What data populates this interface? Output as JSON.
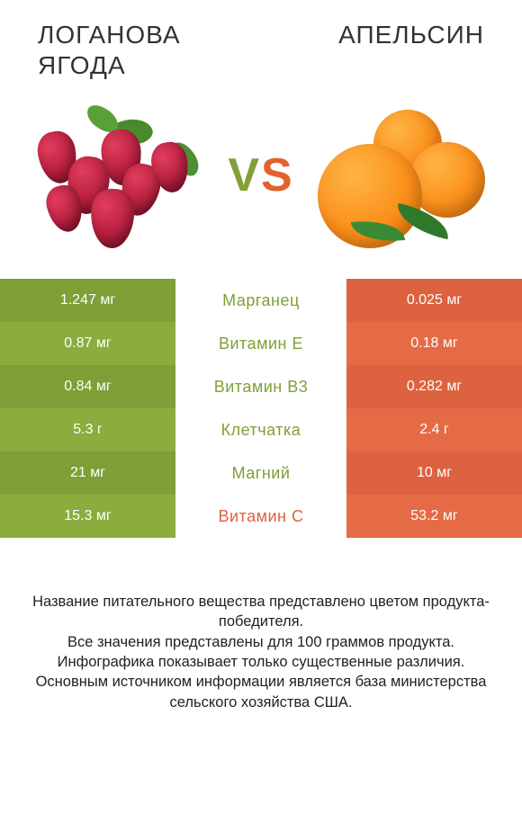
{
  "header": {
    "left_title": "ЛОГАНОВА\nЯГОДА",
    "right_title": "АПЕЛЬСИН",
    "vs_v": "V",
    "vs_s": "S"
  },
  "colors": {
    "left_product": "#8aad3d",
    "right_product": "#e46b45",
    "left_shades": [
      "#7f9f37",
      "#8aad3d"
    ],
    "right_shades": [
      "#dd6240",
      "#e46b45"
    ],
    "mid_background": "#ffffff",
    "nutrient_text_left_winner": "#7f9f37",
    "nutrient_text_right_winner": "#dd6240"
  },
  "table": {
    "rows": [
      {
        "nutrient": "Марганец",
        "left": "1.247 мг",
        "right": "0.025 мг",
        "winner": "left"
      },
      {
        "nutrient": "Витамин E",
        "left": "0.87 мг",
        "right": "0.18 мг",
        "winner": "left"
      },
      {
        "nutrient": "Витамин B3",
        "left": "0.84 мг",
        "right": "0.282 мг",
        "winner": "left"
      },
      {
        "nutrient": "Клетчатка",
        "left": "5.3 г",
        "right": "2.4 г",
        "winner": "left"
      },
      {
        "nutrient": "Магний",
        "left": "21 мг",
        "right": "10 мг",
        "winner": "left"
      },
      {
        "nutrient": "Витамин C",
        "left": "15.3 мг",
        "right": "53.2 мг",
        "winner": "right"
      }
    ]
  },
  "footer": {
    "line1": "Название питательного вещества представлено цветом продукта-победителя.",
    "line2": "Все значения представлены для 100 граммов продукта.",
    "line3": "Инфографика показывает только существенные различия.",
    "line4": "Основным источником информации является база министерства сельского хозяйства США."
  }
}
